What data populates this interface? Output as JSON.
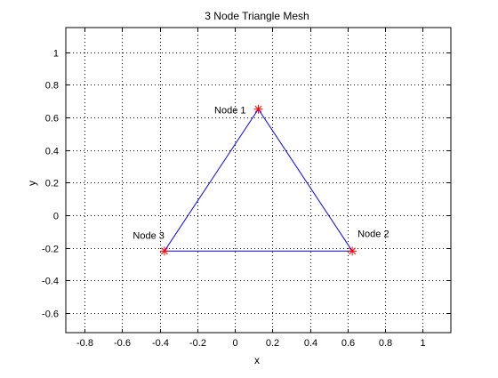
{
  "chart_data": {
    "type": "line",
    "title": "3 Node Triangle Mesh",
    "xlabel": "x",
    "ylabel": "y",
    "xlim": [
      -0.9,
      1.15
    ],
    "ylim": [
      -0.72,
      1.15
    ],
    "xticks": [
      -0.8,
      -0.6,
      -0.4,
      -0.2,
      0,
      0.2,
      0.4,
      0.6,
      0.8,
      1
    ],
    "yticks": [
      -0.6,
      -0.4,
      -0.2,
      0,
      0.2,
      0.4,
      0.6,
      0.8,
      1
    ],
    "grid": true,
    "nodes": [
      {
        "label": "Node 1",
        "x": 0.125,
        "y": 0.65
      },
      {
        "label": "Node 2",
        "x": 0.625,
        "y": -0.22
      },
      {
        "label": "Node 3",
        "x": -0.375,
        "y": -0.22
      }
    ],
    "edges": [
      [
        0,
        1
      ],
      [
        1,
        2
      ],
      [
        2,
        0
      ]
    ],
    "colors": {
      "edge": "#0000ff",
      "marker": "#ff0000",
      "grid": "#000000",
      "axes": "#000000"
    },
    "marker": "asterisk"
  }
}
